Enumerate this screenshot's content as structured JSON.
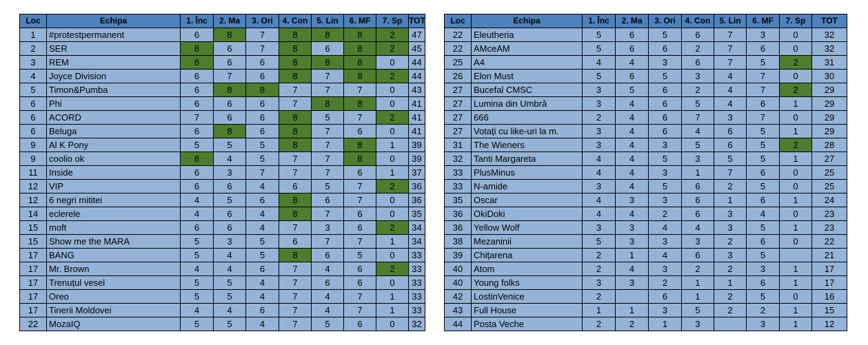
{
  "columns": [
    "Loc",
    "Echipa",
    "1. Înc",
    "2. Ma",
    "3. Ori",
    "4. Con",
    "5. Lin",
    "6. MF",
    "7. Sp",
    "TOT"
  ],
  "colors": {
    "header": "#4f81bd",
    "cell": "#95b3d7",
    "highlight": "#4f7d2e"
  },
  "left_rows": [
    {
      "loc": "1",
      "team": "#protestpermanent",
      "s": [
        "6",
        "8",
        "7",
        "8",
        "8",
        "8",
        "2"
      ],
      "hl": [
        1,
        3,
        4,
        5,
        6
      ],
      "tot": "47"
    },
    {
      "loc": "2",
      "team": "SER",
      "s": [
        "8",
        "6",
        "7",
        "8",
        "6",
        "8",
        "2"
      ],
      "hl": [
        0,
        3,
        5,
        6
      ],
      "tot": "45"
    },
    {
      "loc": "3",
      "team": "REM",
      "s": [
        "8",
        "6",
        "6",
        "8",
        "8",
        "8",
        "0"
      ],
      "hl": [
        0,
        3,
        4,
        5
      ],
      "tot": "44"
    },
    {
      "loc": "4",
      "team": "Joyce Division",
      "s": [
        "6",
        "7",
        "6",
        "8",
        "7",
        "8",
        "2"
      ],
      "hl": [
        3,
        5,
        6
      ],
      "tot": "44"
    },
    {
      "loc": "5",
      "team": "Timon&Pumba",
      "s": [
        "6",
        "8",
        "8",
        "7",
        "7",
        "7",
        "0"
      ],
      "hl": [
        1,
        2
      ],
      "tot": "43"
    },
    {
      "loc": "6",
      "team": "Phi",
      "s": [
        "6",
        "6",
        "6",
        "7",
        "8",
        "8",
        "0"
      ],
      "hl": [
        4,
        5
      ],
      "tot": "41"
    },
    {
      "loc": "6",
      "team": "ACORD",
      "s": [
        "7",
        "6",
        "6",
        "8",
        "5",
        "7",
        "2"
      ],
      "hl": [
        3,
        6
      ],
      "tot": "41"
    },
    {
      "loc": "6",
      "team": "Beluga",
      "s": [
        "6",
        "8",
        "6",
        "8",
        "7",
        "6",
        "0"
      ],
      "hl": [
        1,
        3
      ],
      "tot": "41"
    },
    {
      "loc": "9",
      "team": "Al K Pony",
      "s": [
        "5",
        "5",
        "5",
        "8",
        "7",
        "8",
        "1"
      ],
      "hl": [
        3,
        5
      ],
      "tot": "39"
    },
    {
      "loc": "9",
      "team": "coolio ok",
      "s": [
        "8",
        "4",
        "5",
        "7",
        "7",
        "8",
        "0"
      ],
      "hl": [
        0,
        5
      ],
      "tot": "39"
    },
    {
      "loc": "11",
      "team": "Inside",
      "s": [
        "6",
        "3",
        "7",
        "7",
        "7",
        "6",
        "1"
      ],
      "hl": [],
      "tot": "37"
    },
    {
      "loc": "12",
      "team": "VIP",
      "s": [
        "6",
        "6",
        "4",
        "6",
        "5",
        "7",
        "2"
      ],
      "hl": [
        6
      ],
      "tot": "36"
    },
    {
      "loc": "12",
      "team": "6 negri mititei",
      "s": [
        "4",
        "5",
        "6",
        "8",
        "6",
        "7",
        "0"
      ],
      "hl": [
        3
      ],
      "tot": "36"
    },
    {
      "loc": "14",
      "team": "eclerele",
      "s": [
        "4",
        "6",
        "4",
        "8",
        "7",
        "6",
        "0"
      ],
      "hl": [
        3
      ],
      "tot": "35"
    },
    {
      "loc": "15",
      "team": "moft",
      "s": [
        "6",
        "6",
        "4",
        "7",
        "3",
        "6",
        "2"
      ],
      "hl": [
        6
      ],
      "tot": "34"
    },
    {
      "loc": "15",
      "team": "Show me the MARA",
      "s": [
        "5",
        "3",
        "5",
        "6",
        "7",
        "7",
        "1"
      ],
      "hl": [],
      "tot": "34"
    },
    {
      "loc": "17",
      "team": "BANG",
      "s": [
        "5",
        "4",
        "5",
        "8",
        "6",
        "5",
        "0"
      ],
      "hl": [
        3
      ],
      "tot": "33"
    },
    {
      "loc": "17",
      "team": "Mr. Brown",
      "s": [
        "4",
        "4",
        "6",
        "7",
        "4",
        "6",
        "2"
      ],
      "hl": [
        6
      ],
      "tot": "33"
    },
    {
      "loc": "17",
      "team": "Trenuțul vesel",
      "s": [
        "5",
        "5",
        "4",
        "7",
        "6",
        "6",
        "0"
      ],
      "hl": [],
      "tot": "33"
    },
    {
      "loc": "17",
      "team": "Oreo",
      "s": [
        "5",
        "5",
        "4",
        "7",
        "4",
        "7",
        "1"
      ],
      "hl": [],
      "tot": "33"
    },
    {
      "loc": "17",
      "team": "Tinerii Moldovei",
      "s": [
        "4",
        "4",
        "6",
        "7",
        "4",
        "7",
        "1"
      ],
      "hl": [],
      "tot": "33"
    },
    {
      "loc": "22",
      "team": "MozaIQ",
      "s": [
        "5",
        "5",
        "4",
        "7",
        "5",
        "6",
        "0"
      ],
      "hl": [],
      "tot": "32"
    }
  ],
  "right_rows": [
    {
      "loc": "22",
      "team": "Eleutheria",
      "s": [
        "5",
        "6",
        "5",
        "6",
        "7",
        "3",
        "0"
      ],
      "hl": [],
      "tot": "32"
    },
    {
      "loc": "22",
      "team": "AMceAM",
      "s": [
        "5",
        "6",
        "6",
        "2",
        "7",
        "6",
        "0"
      ],
      "hl": [],
      "tot": "32"
    },
    {
      "loc": "25",
      "team": "A4",
      "s": [
        "4",
        "4",
        "3",
        "6",
        "7",
        "5",
        "2"
      ],
      "hl": [
        6
      ],
      "tot": "31"
    },
    {
      "loc": "26",
      "team": "Elon Must",
      "s": [
        "5",
        "6",
        "5",
        "3",
        "4",
        "7",
        "0"
      ],
      "hl": [],
      "tot": "30"
    },
    {
      "loc": "27",
      "team": "Bucefal CMSC",
      "s": [
        "3",
        "5",
        "6",
        "2",
        "4",
        "7",
        "2"
      ],
      "hl": [
        6
      ],
      "tot": "29"
    },
    {
      "loc": "27",
      "team": "Lumina din Umbră",
      "s": [
        "3",
        "4",
        "6",
        "5",
        "4",
        "6",
        "1"
      ],
      "hl": [],
      "tot": "29"
    },
    {
      "loc": "27",
      "team": "666",
      "s": [
        "2",
        "4",
        "6",
        "7",
        "3",
        "7",
        "0"
      ],
      "hl": [],
      "tot": "29"
    },
    {
      "loc": "27",
      "team": "Votați cu like-uri la m.",
      "s": [
        "3",
        "4",
        "6",
        "4",
        "6",
        "5",
        "1"
      ],
      "hl": [],
      "tot": "29"
    },
    {
      "loc": "31",
      "team": "The Wieners",
      "s": [
        "3",
        "4",
        "3",
        "5",
        "6",
        "5",
        "2"
      ],
      "hl": [
        6
      ],
      "tot": "28"
    },
    {
      "loc": "32",
      "team": "Tanti Margareta",
      "s": [
        "4",
        "4",
        "5",
        "3",
        "5",
        "5",
        "1"
      ],
      "hl": [],
      "tot": "27"
    },
    {
      "loc": "33",
      "team": "PlusMinus",
      "s": [
        "4",
        "4",
        "3",
        "1",
        "7",
        "6",
        "0"
      ],
      "hl": [],
      "tot": "25"
    },
    {
      "loc": "33",
      "team": "N-amide",
      "s": [
        "3",
        "4",
        "5",
        "6",
        "2",
        "5",
        "0"
      ],
      "hl": [],
      "tot": "25"
    },
    {
      "loc": "35",
      "team": "Oscar",
      "s": [
        "4",
        "3",
        "3",
        "6",
        "1",
        "6",
        "1"
      ],
      "hl": [],
      "tot": "24"
    },
    {
      "loc": "36",
      "team": "OkiDoki",
      "s": [
        "4",
        "4",
        "2",
        "6",
        "3",
        "4",
        "0"
      ],
      "hl": [],
      "tot": "23"
    },
    {
      "loc": "36",
      "team": "Yellow Wolf",
      "s": [
        "3",
        "3",
        "4",
        "4",
        "3",
        "5",
        "1"
      ],
      "hl": [],
      "tot": "23"
    },
    {
      "loc": "38",
      "team": "Mezaninii",
      "s": [
        "5",
        "3",
        "3",
        "3",
        "2",
        "6",
        "0"
      ],
      "hl": [],
      "tot": "22"
    },
    {
      "loc": "39",
      "team": "Chițarena",
      "s": [
        "2",
        "1",
        "4",
        "6",
        "3",
        "5",
        ""
      ],
      "hl": [],
      "tot": "21"
    },
    {
      "loc": "40",
      "team": "Atom",
      "s": [
        "2",
        "4",
        "3",
        "2",
        "2",
        "3",
        "1"
      ],
      "hl": [],
      "tot": "17"
    },
    {
      "loc": "40",
      "team": "Young folks",
      "s": [
        "3",
        "3",
        "2",
        "1",
        "1",
        "6",
        "1"
      ],
      "hl": [],
      "tot": "17"
    },
    {
      "loc": "42",
      "team": "LostinVenice",
      "s": [
        "2",
        "",
        "6",
        "1",
        "2",
        "5",
        "0"
      ],
      "hl": [],
      "tot": "16"
    },
    {
      "loc": "43",
      "team": "Full House",
      "s": [
        "1",
        "1",
        "3",
        "5",
        "2",
        "2",
        "1"
      ],
      "hl": [],
      "tot": "15"
    },
    {
      "loc": "44",
      "team": "Posta Veche",
      "s": [
        "2",
        "2",
        "1",
        "3",
        "",
        "3",
        "1"
      ],
      "hl": [],
      "tot": "12"
    }
  ]
}
